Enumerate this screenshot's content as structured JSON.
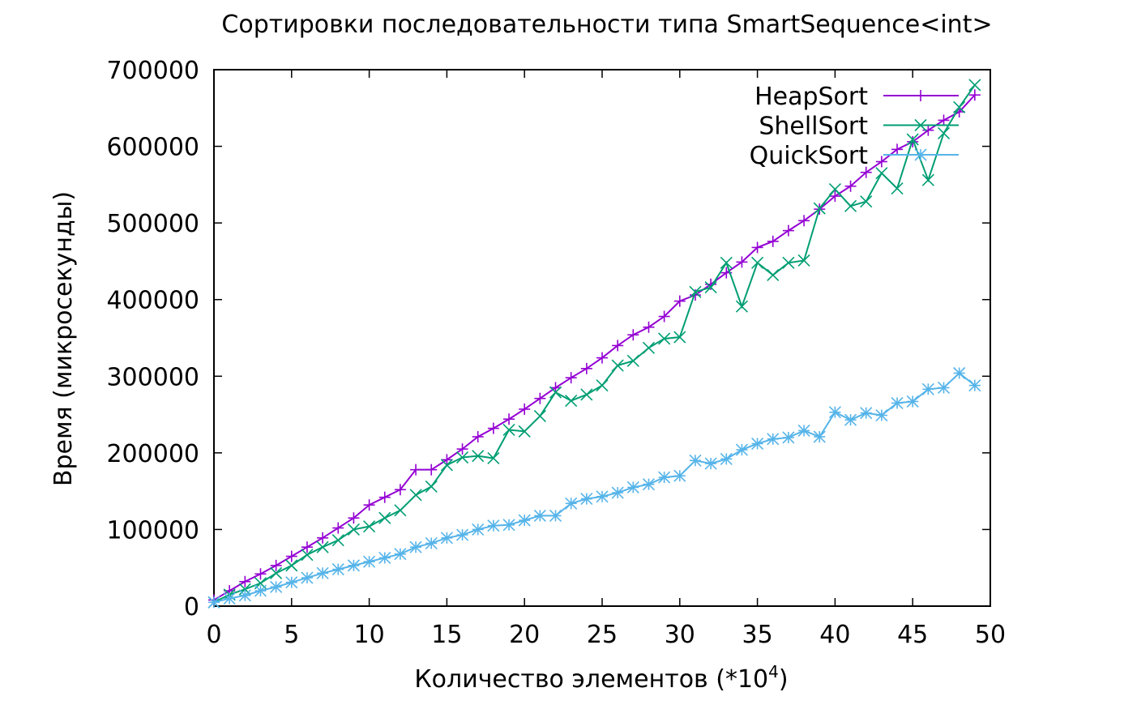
{
  "chart_data": {
    "type": "line",
    "title": "Сортировки последовательности типа SmartSequence<int>",
    "xlabel": "Количество элементов (*10",
    "xlabel_sup": "4",
    "xlabel_close": ")",
    "ylabel": "Время (микросекунды)",
    "xlim": [
      0,
      50
    ],
    "ylim": [
      0,
      700000
    ],
    "xticks": [
      0,
      5,
      10,
      15,
      20,
      25,
      30,
      35,
      40,
      45,
      50
    ],
    "yticks": [
      0,
      100000,
      200000,
      300000,
      400000,
      500000,
      600000,
      700000
    ],
    "legend_position": "top-right",
    "grid": false,
    "x": [
      0,
      1,
      2,
      3,
      4,
      5,
      6,
      7,
      8,
      9,
      10,
      11,
      12,
      13,
      14,
      15,
      16,
      17,
      18,
      19,
      20,
      21,
      22,
      23,
      24,
      25,
      26,
      27,
      28,
      29,
      30,
      31,
      32,
      33,
      34,
      35,
      36,
      37,
      38,
      39,
      40,
      41,
      42,
      43,
      44,
      45,
      46,
      47,
      48,
      49
    ],
    "series": [
      {
        "name": "HeapSort",
        "color": "#9400d3",
        "marker": "plus",
        "values": [
          8000,
          20000,
          32000,
          42000,
          53000,
          65000,
          77000,
          89000,
          102000,
          115000,
          132000,
          142000,
          152000,
          178000,
          178000,
          191000,
          205000,
          221000,
          232000,
          244000,
          257000,
          271000,
          285000,
          298000,
          310000,
          324000,
          340000,
          354000,
          364000,
          378000,
          398000,
          406000,
          420000,
          435000,
          449000,
          468000,
          476000,
          490000,
          503000,
          518000,
          535000,
          548000,
          566000,
          580000,
          596000,
          606000,
          621000,
          634000,
          645000,
          667000
        ]
      },
      {
        "name": "ShellSort",
        "color": "#009e73",
        "marker": "cross",
        "values": [
          5000,
          15000,
          22000,
          30000,
          43000,
          53000,
          67000,
          77000,
          86000,
          100000,
          104000,
          115000,
          125000,
          145000,
          156000,
          184000,
          194000,
          196000,
          193000,
          230000,
          228000,
          248000,
          279000,
          268000,
          276000,
          288000,
          314000,
          320000,
          337000,
          349000,
          351000,
          410000,
          416000,
          448000,
          391000,
          448000,
          432000,
          448000,
          451000,
          519000,
          544000,
          522000,
          528000,
          565000,
          545000,
          609000,
          556000,
          617000,
          651000,
          680000
        ]
      },
      {
        "name": "QuickSort",
        "color": "#56b4e9",
        "marker": "star",
        "values": [
          5000,
          10000,
          14000,
          20000,
          25000,
          31000,
          37000,
          43000,
          48000,
          53000,
          58000,
          63000,
          68000,
          77000,
          82000,
          89000,
          93000,
          100000,
          105000,
          106000,
          112000,
          118000,
          118000,
          134000,
          140000,
          143000,
          148000,
          155000,
          159000,
          168000,
          170000,
          190000,
          186000,
          192000,
          204000,
          212000,
          218000,
          220000,
          229000,
          221000,
          253000,
          243000,
          252000,
          249000,
          265000,
          267000,
          283000,
          285000,
          304000,
          288000
        ]
      }
    ]
  }
}
